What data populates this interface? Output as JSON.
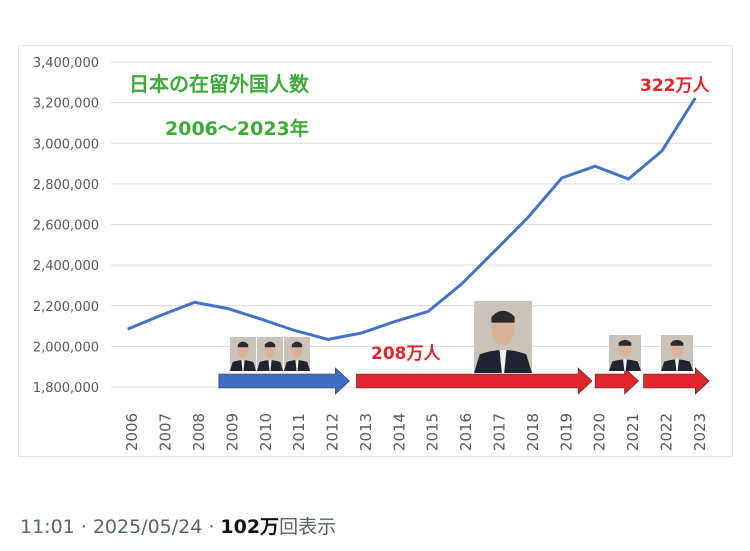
{
  "chart_data": {
    "type": "line",
    "title": "日本の在留外国人数",
    "subtitle": "2006〜2023年",
    "x": [
      "2006",
      "2007",
      "2008",
      "2009",
      "2010",
      "2011",
      "2012",
      "2013",
      "2014",
      "2015",
      "2016",
      "2017",
      "2018",
      "2019",
      "2020",
      "2021",
      "2022",
      "2023"
    ],
    "series": [
      {
        "values": [
          2085000,
          2153000,
          2217000,
          2186000,
          2134000,
          2078000,
          2034000,
          2066000,
          2122000,
          2172000,
          2307000,
          2471000,
          2637000,
          2829000,
          2887000,
          2824000,
          2962000,
          3223000
        ]
      }
    ],
    "ylim": [
      1800000,
      3400000
    ],
    "yticks": [
      "3,400,000",
      "3,200,000",
      "3,000,000",
      "2,800,000",
      "2,600,000",
      "2,400,000",
      "2,200,000",
      "2,000,000",
      "1,800,000"
    ],
    "ytick_values": [
      3400000,
      3200000,
      3000000,
      2800000,
      2600000,
      2400000,
      2200000,
      2000000,
      1800000
    ],
    "grid": true,
    "line_color": "#4472c4",
    "annotations": [
      {
        "text": "208万人",
        "color": "#e0262c"
      },
      {
        "text": "322万人",
        "color": "#e0262c"
      }
    ],
    "title_color": "#3daa3a",
    "arrows": [
      {
        "from": "2009",
        "to": "2013",
        "color": "#3e6fc4"
      },
      {
        "from": "2013",
        "to": "2020",
        "color": "#e0262c"
      },
      {
        "from": "2020",
        "to": "2021",
        "color": "#e0262c"
      },
      {
        "from": "2021",
        "to": "2023",
        "color": "#e0262c"
      }
    ]
  },
  "footer": {
    "time": "11:01",
    "date": "2025/05/24",
    "separator": "·",
    "views_number": "102",
    "views_unit": "万",
    "views_suffix": "回表示"
  }
}
